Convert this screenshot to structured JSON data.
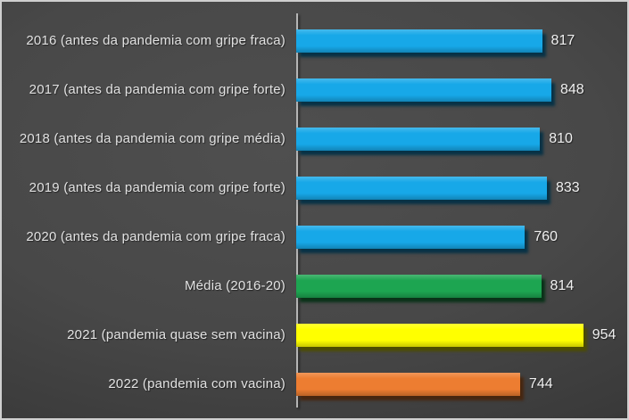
{
  "chart_data": {
    "type": "bar",
    "orientation": "horizontal",
    "title": "",
    "xlabel": "",
    "ylabel": "",
    "grid": false,
    "legend": false,
    "value_labels_position": "end-of-bar",
    "xlim": [
      0,
      1100
    ],
    "categories": [
      "2016 (antes da pandemia com gripe fraca)",
      "2017 (antes da pandemia com gripe forte)",
      "2018 (antes da pandemia com gripe média)",
      "2019 (antes da pandemia com gripe forte)",
      "2020 (antes da pandemia com gripe fraca)",
      "Média (2016-20)",
      "2021 (pandemia quase sem vacina)",
      "2022 (pandemia com vacina)"
    ],
    "values": [
      817,
      848,
      810,
      833,
      760,
      814,
      954,
      744
    ],
    "bar_colors": [
      "#17a8e8",
      "#17a8e8",
      "#17a8e8",
      "#17a8e8",
      "#17a8e8",
      "#1da551",
      "#ffff00",
      "#ed7d31"
    ],
    "colors": {
      "blue": "#17a8e8",
      "green": "#1da551",
      "yellow": "#ffff00",
      "orange": "#ed7d31",
      "axis_line": "#b5b5b5",
      "category_text": "#e2e2e2",
      "value_text": "#f0f0f0"
    }
  }
}
